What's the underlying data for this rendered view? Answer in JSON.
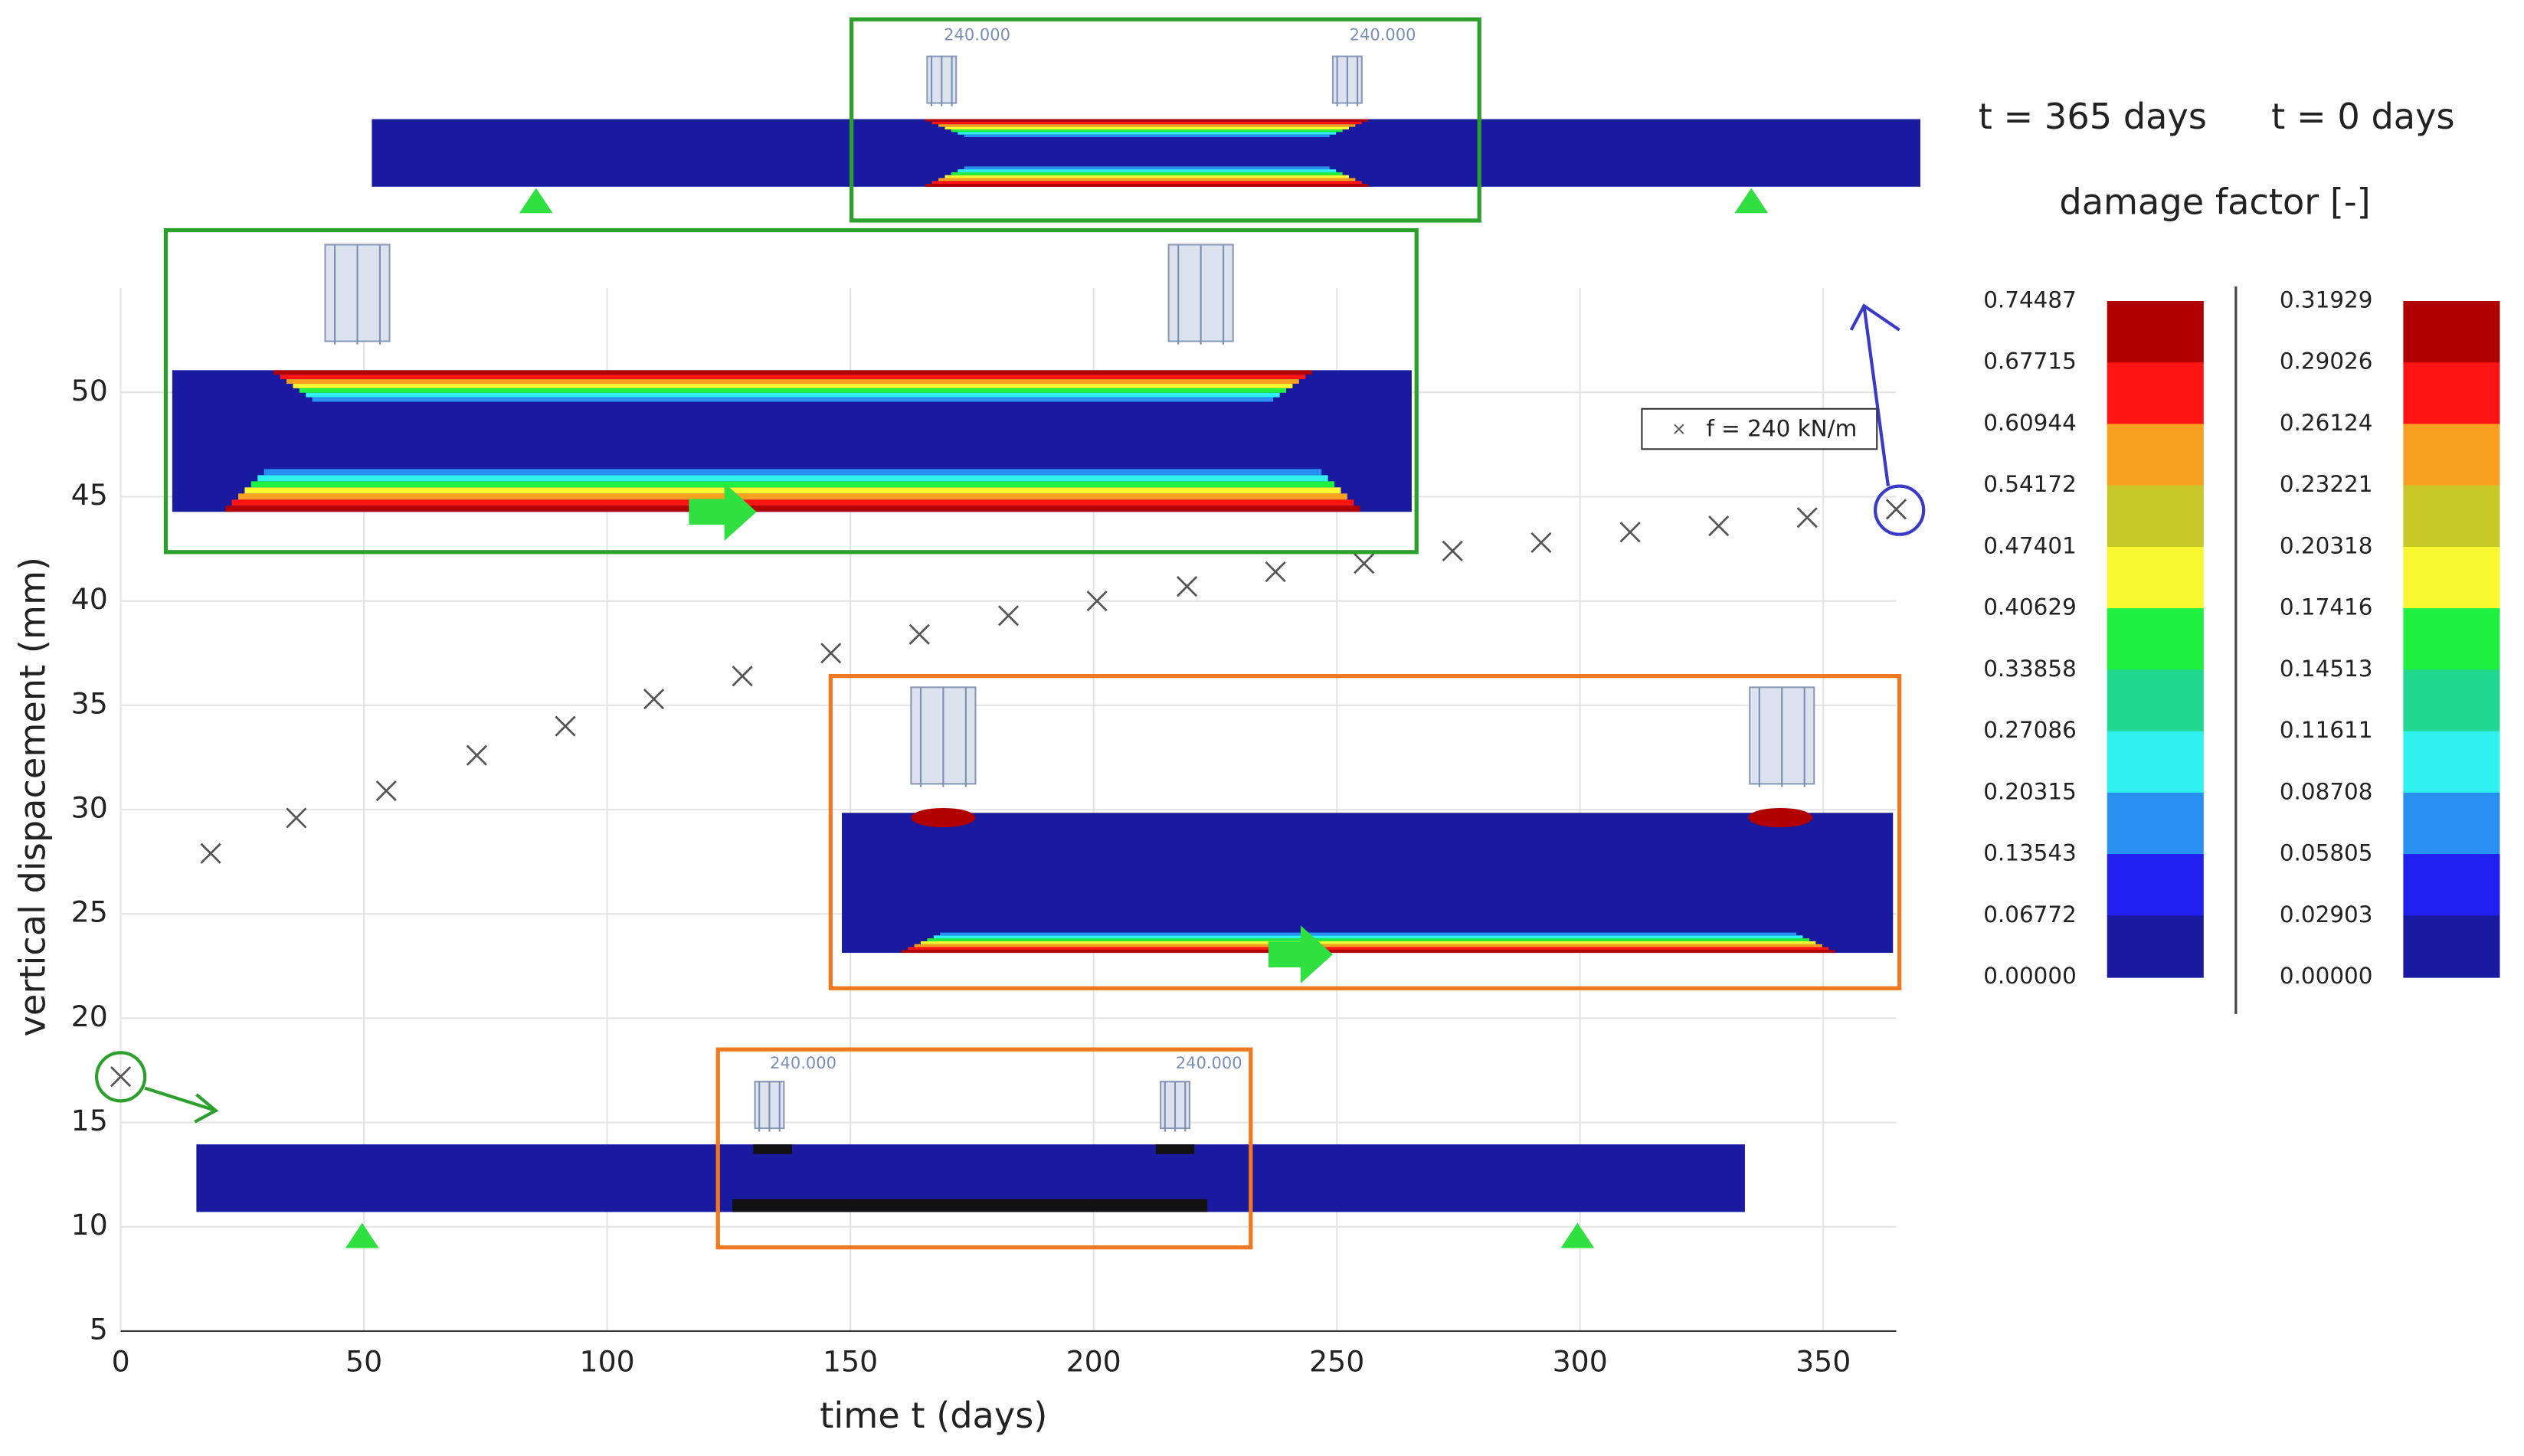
{
  "chart_data": {
    "type": "scatter",
    "x_label": "time t (days)",
    "y_label": "vertical dispacement (mm)",
    "x": [
      0,
      18.5,
      36.1,
      54.6,
      73.2,
      91.4,
      109.6,
      127.8,
      146,
      164.2,
      182.5,
      200.7,
      219.2,
      237.4,
      255.6,
      273.8,
      292,
      310.3,
      328.5,
      346.7,
      365
    ],
    "series": [
      {
        "name": "f = 240 kN/m",
        "color": "#555555",
        "values": [
          17.2,
          27.9,
          29.6,
          30.9,
          32.6,
          34.0,
          35.3,
          36.4,
          37.5,
          38.4,
          39.3,
          40.0,
          40.7,
          41.4,
          41.8,
          42.4,
          42.8,
          43.3,
          43.6,
          44.0,
          44.4
        ]
      }
    ],
    "xlim": [
      0,
      365
    ],
    "xticks": [
      0,
      50,
      100,
      150,
      200,
      250,
      300,
      350
    ],
    "ylim": [
      5,
      55
    ],
    "yticks": [
      5,
      10,
      15,
      20,
      25,
      30,
      35,
      40,
      45,
      50
    ],
    "grid": true
  },
  "insets": {
    "load_labels": [
      "240.000",
      "240.000",
      "240.000",
      "240.000"
    ]
  },
  "colorbar": {
    "title": "damage factor [-]",
    "panels": [
      {
        "title": "t = 365 days",
        "colors": [
          "#b00000",
          "#ff1414",
          "#f8a020",
          "#c8c828",
          "#f8f830",
          "#20f040",
          "#20d890",
          "#30f0f0",
          "#2890f0",
          "#2020f0",
          "#1a1aa0"
        ],
        "ticks": [
          {
            "value": 0.74487,
            "label": "0.74487"
          },
          {
            "value": 0.67715,
            "label": "0.67715"
          },
          {
            "value": 0.60944,
            "label": "0.60944"
          },
          {
            "value": 0.54172,
            "label": "0.54172"
          },
          {
            "value": 0.47401,
            "label": "0.47401"
          },
          {
            "value": 0.40629,
            "label": "0.40629"
          },
          {
            "value": 0.33858,
            "label": "0.33858"
          },
          {
            "value": 0.27086,
            "label": "0.27086"
          },
          {
            "value": 0.20315,
            "label": "0.20315"
          },
          {
            "value": 0.13543,
            "label": "0.13543"
          },
          {
            "value": 0.06772,
            "label": "0.06772"
          },
          {
            "value": 0,
            "label": "0.00000"
          }
        ]
      },
      {
        "title": "t = 0 days",
        "colors": [
          "#b00000",
          "#ff1414",
          "#f8a020",
          "#c8c828",
          "#f8f830",
          "#20f040",
          "#20d890",
          "#30f0f0",
          "#2890f0",
          "#2020f0",
          "#1a1aa0"
        ],
        "ticks": [
          {
            "value": 0.31929,
            "label": "0.31929"
          },
          {
            "value": 0.29026,
            "label": "0.29026"
          },
          {
            "value": 0.26124,
            "label": "0.26124"
          },
          {
            "value": 0.23221,
            "label": "0.23221"
          },
          {
            "value": 0.20318,
            "label": "0.20318"
          },
          {
            "value": 0.17416,
            "label": "0.17416"
          },
          {
            "value": 0.14513,
            "label": "0.14513"
          },
          {
            "value": 0.11611,
            "label": "0.11611"
          },
          {
            "value": 0.08708,
            "label": "0.08708"
          },
          {
            "value": 0.05805,
            "label": "0.05805"
          },
          {
            "value": 0.02903,
            "label": "0.02903"
          },
          {
            "value": 0,
            "label": "0.00000"
          }
        ]
      }
    ]
  }
}
